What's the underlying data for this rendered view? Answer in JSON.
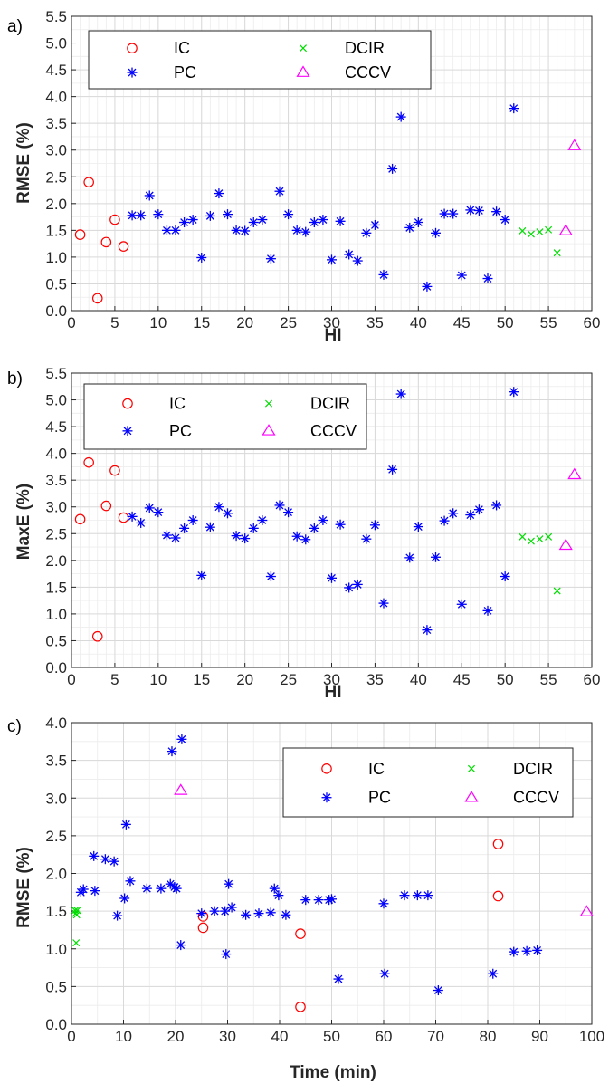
{
  "legend_labels": {
    "ic": "IC",
    "pc": "PC",
    "dcir": "DCIR",
    "cccv": "CCCV"
  },
  "colors": {
    "ic": "#ff0000",
    "pc": "#0000ff",
    "dcir": "#00dd00",
    "cccv": "#ff00ff"
  },
  "chart_data": [
    {
      "type": "scatter",
      "panel_label": "a)",
      "xlabel": "HI",
      "ylabel": "RMSE (%)",
      "xlim": [
        0,
        60
      ],
      "ylim": [
        0,
        5.5
      ],
      "xticks": [
        0,
        5,
        10,
        15,
        20,
        25,
        30,
        35,
        40,
        45,
        50,
        55,
        60
      ],
      "yticks": [
        0,
        0.5,
        1,
        1.5,
        2,
        2.5,
        3,
        3.5,
        4,
        4.5,
        5,
        5.5
      ],
      "ytick_labels": [
        "0.0",
        "0.5",
        "1.0",
        "1.5",
        "2.0",
        "2.5",
        "3.0",
        "3.5",
        "4.0",
        "4.5",
        "5.0",
        "5.5"
      ],
      "grid": true,
      "legend_position": "top-left",
      "series": [
        {
          "name": "IC",
          "marker": "circle",
          "color": "#ff0000",
          "points": [
            [
              1,
              1.42
            ],
            [
              2,
              2.4
            ],
            [
              3,
              0.23
            ],
            [
              4,
              1.28
            ],
            [
              5,
              1.7
            ],
            [
              6,
              1.2
            ]
          ]
        },
        {
          "name": "PC",
          "marker": "asterisk",
          "color": "#0000ff",
          "points": [
            [
              7,
              1.78
            ],
            [
              8,
              1.78
            ],
            [
              9,
              2.15
            ],
            [
              10,
              1.8
            ],
            [
              11,
              1.5
            ],
            [
              12,
              1.5
            ],
            [
              13,
              1.65
            ],
            [
              14,
              1.7
            ],
            [
              15,
              0.99
            ],
            [
              16,
              1.77
            ],
            [
              17,
              2.19
            ],
            [
              18,
              1.8
            ],
            [
              19,
              1.5
            ],
            [
              20,
              1.49
            ],
            [
              21,
              1.65
            ],
            [
              22,
              1.7
            ],
            [
              23,
              0.97
            ],
            [
              24,
              2.23
            ],
            [
              25,
              1.8
            ],
            [
              26,
              1.5
            ],
            [
              27,
              1.47
            ],
            [
              28,
              1.65
            ],
            [
              29,
              1.7
            ],
            [
              30,
              0.95
            ],
            [
              31,
              1.67
            ],
            [
              32,
              1.05
            ],
            [
              33,
              0.93
            ],
            [
              34,
              1.45
            ],
            [
              35,
              1.6
            ],
            [
              36,
              0.67
            ],
            [
              37,
              2.65
            ],
            [
              38,
              3.62
            ],
            [
              39,
              1.55
            ],
            [
              40,
              1.65
            ],
            [
              41,
              0.45
            ],
            [
              42,
              1.45
            ],
            [
              43,
              1.81
            ],
            [
              44,
              1.81
            ],
            [
              45,
              0.66
            ],
            [
              46,
              1.88
            ],
            [
              47,
              1.87
            ],
            [
              48,
              0.6
            ],
            [
              49,
              1.85
            ],
            [
              50,
              1.7
            ],
            [
              51,
              3.78
            ]
          ]
        },
        {
          "name": "DCIR",
          "marker": "x",
          "color": "#00dd00",
          "points": [
            [
              52,
              1.49
            ],
            [
              53,
              1.43
            ],
            [
              54,
              1.47
            ],
            [
              55,
              1.51
            ],
            [
              56,
              1.08
            ]
          ]
        },
        {
          "name": "CCCV",
          "marker": "triangle",
          "color": "#ff00ff",
          "points": [
            [
              57,
              1.49
            ],
            [
              58,
              3.08
            ]
          ]
        }
      ]
    },
    {
      "type": "scatter",
      "panel_label": "b)",
      "xlabel": "HI",
      "ylabel": "MaxE (%)",
      "xlim": [
        0,
        60
      ],
      "ylim": [
        0,
        5.5
      ],
      "xticks": [
        0,
        5,
        10,
        15,
        20,
        25,
        30,
        35,
        40,
        45,
        50,
        55,
        60
      ],
      "yticks": [
        0,
        0.5,
        1,
        1.5,
        2,
        2.5,
        3,
        3.5,
        4,
        4.5,
        5,
        5.5
      ],
      "ytick_labels": [
        "0.0",
        "0.5",
        "1.0",
        "1.5",
        "2.0",
        "2.5",
        "3.0",
        "3.5",
        "4.0",
        "4.5",
        "5.0",
        "5.5"
      ],
      "grid": true,
      "legend_position": "top-left",
      "series": [
        {
          "name": "IC",
          "marker": "circle",
          "color": "#ff0000",
          "points": [
            [
              1,
              2.77
            ],
            [
              2,
              3.83
            ],
            [
              3,
              0.58
            ],
            [
              4,
              3.02
            ],
            [
              5,
              3.68
            ],
            [
              6,
              2.8
            ]
          ]
        },
        {
          "name": "PC",
          "marker": "asterisk",
          "color": "#0000ff",
          "points": [
            [
              7,
              2.82
            ],
            [
              8,
              2.7
            ],
            [
              9,
              2.98
            ],
            [
              10,
              2.9
            ],
            [
              11,
              2.47
            ],
            [
              12,
              2.42
            ],
            [
              13,
              2.6
            ],
            [
              14,
              2.75
            ],
            [
              15,
              1.72
            ],
            [
              16,
              2.62
            ],
            [
              17,
              3.0
            ],
            [
              18,
              2.88
            ],
            [
              19,
              2.46
            ],
            [
              20,
              2.41
            ],
            [
              21,
              2.6
            ],
            [
              22,
              2.75
            ],
            [
              23,
              1.7
            ],
            [
              24,
              3.03
            ],
            [
              25,
              2.9
            ],
            [
              26,
              2.45
            ],
            [
              27,
              2.39
            ],
            [
              28,
              2.6
            ],
            [
              29,
              2.75
            ],
            [
              30,
              1.67
            ],
            [
              31,
              2.67
            ],
            [
              32,
              1.49
            ],
            [
              33,
              1.55
            ],
            [
              34,
              2.4
            ],
            [
              35,
              2.66
            ],
            [
              36,
              1.2
            ],
            [
              37,
              3.7
            ],
            [
              38,
              5.11
            ],
            [
              39,
              2.05
            ],
            [
              40,
              2.63
            ],
            [
              41,
              0.7
            ],
            [
              42,
              2.06
            ],
            [
              43,
              2.74
            ],
            [
              44,
              2.88
            ],
            [
              45,
              1.18
            ],
            [
              46,
              2.85
            ],
            [
              47,
              2.95
            ],
            [
              48,
              1.06
            ],
            [
              49,
              3.03
            ],
            [
              50,
              1.7
            ],
            [
              51,
              5.15
            ]
          ]
        },
        {
          "name": "DCIR",
          "marker": "x",
          "color": "#00dd00",
          "points": [
            [
              52,
              2.44
            ],
            [
              53,
              2.36
            ],
            [
              54,
              2.4
            ],
            [
              55,
              2.44
            ],
            [
              56,
              1.43
            ]
          ]
        },
        {
          "name": "CCCV",
          "marker": "triangle",
          "color": "#ff00ff",
          "points": [
            [
              57,
              2.28
            ],
            [
              58,
              3.6
            ]
          ]
        }
      ]
    },
    {
      "type": "scatter",
      "panel_label": "c)",
      "xlabel": "Time (min)",
      "ylabel": "RMSE (%)",
      "xlim": [
        0,
        100
      ],
      "ylim": [
        0,
        4
      ],
      "xticks": [
        0,
        10,
        20,
        30,
        40,
        50,
        60,
        70,
        80,
        90,
        100
      ],
      "yticks": [
        0,
        0.5,
        1,
        1.5,
        2,
        2.5,
        3,
        3.5,
        4
      ],
      "ytick_labels": [
        "0.0",
        "0.5",
        "1.0",
        "1.5",
        "2.0",
        "2.5",
        "3.0",
        "3.5",
        "4.0"
      ],
      "grid": true,
      "legend_position": "top-right",
      "series": [
        {
          "name": "IC",
          "marker": "circle",
          "color": "#ff0000",
          "points": [
            [
              25.3,
              1.43
            ],
            [
              25.3,
              1.28
            ],
            [
              44,
              1.2
            ],
            [
              44,
              0.23
            ],
            [
              82,
              2.39
            ],
            [
              82,
              1.7
            ]
          ]
        },
        {
          "name": "PC",
          "marker": "asterisk",
          "color": "#0000ff",
          "points": [
            [
              1.8,
              1.75
            ],
            [
              2.3,
              1.79
            ],
            [
              4.3,
              2.23
            ],
            [
              4.5,
              1.77
            ],
            [
              6.5,
              2.19
            ],
            [
              8.2,
              2.16
            ],
            [
              8.8,
              1.44
            ],
            [
              10.2,
              1.67
            ],
            [
              10.5,
              2.65
            ],
            [
              11.3,
              1.9
            ],
            [
              14.5,
              1.8
            ],
            [
              17.2,
              1.8
            ],
            [
              19,
              1.86
            ],
            [
              19.3,
              3.62
            ],
            [
              19.8,
              1.82
            ],
            [
              20.2,
              1.8
            ],
            [
              21,
              1.05
            ],
            [
              21.2,
              3.78
            ],
            [
              25,
              1.47
            ],
            [
              27.5,
              1.5
            ],
            [
              29.5,
              1.5
            ],
            [
              29.7,
              0.93
            ],
            [
              30.2,
              1.86
            ],
            [
              30.8,
              1.55
            ],
            [
              33.5,
              1.45
            ],
            [
              36,
              1.47
            ],
            [
              38.3,
              1.48
            ],
            [
              39,
              1.8
            ],
            [
              39.8,
              1.71
            ],
            [
              41.2,
              1.45
            ],
            [
              45,
              1.65
            ],
            [
              47.5,
              1.65
            ],
            [
              49.5,
              1.65
            ],
            [
              50,
              1.66
            ],
            [
              51.3,
              0.6
            ],
            [
              60,
              1.6
            ],
            [
              60.2,
              0.67
            ],
            [
              64,
              1.71
            ],
            [
              66.5,
              1.71
            ],
            [
              68.5,
              1.71
            ],
            [
              70.5,
              0.45
            ],
            [
              81,
              0.67
            ],
            [
              85,
              0.96
            ],
            [
              87.5,
              0.97
            ],
            [
              89.5,
              0.98
            ]
          ]
        },
        {
          "name": "DCIR",
          "marker": "x",
          "color": "#00dd00",
          "points": [
            [
              0.7,
              1.51
            ],
            [
              0.8,
              1.47
            ],
            [
              1.0,
              1.45
            ],
            [
              1.1,
              1.51
            ],
            [
              0.9,
              1.08
            ]
          ]
        },
        {
          "name": "CCCV",
          "marker": "triangle",
          "color": "#ff00ff",
          "points": [
            [
              21,
              3.1
            ],
            [
              99,
              1.49
            ]
          ]
        }
      ]
    }
  ]
}
